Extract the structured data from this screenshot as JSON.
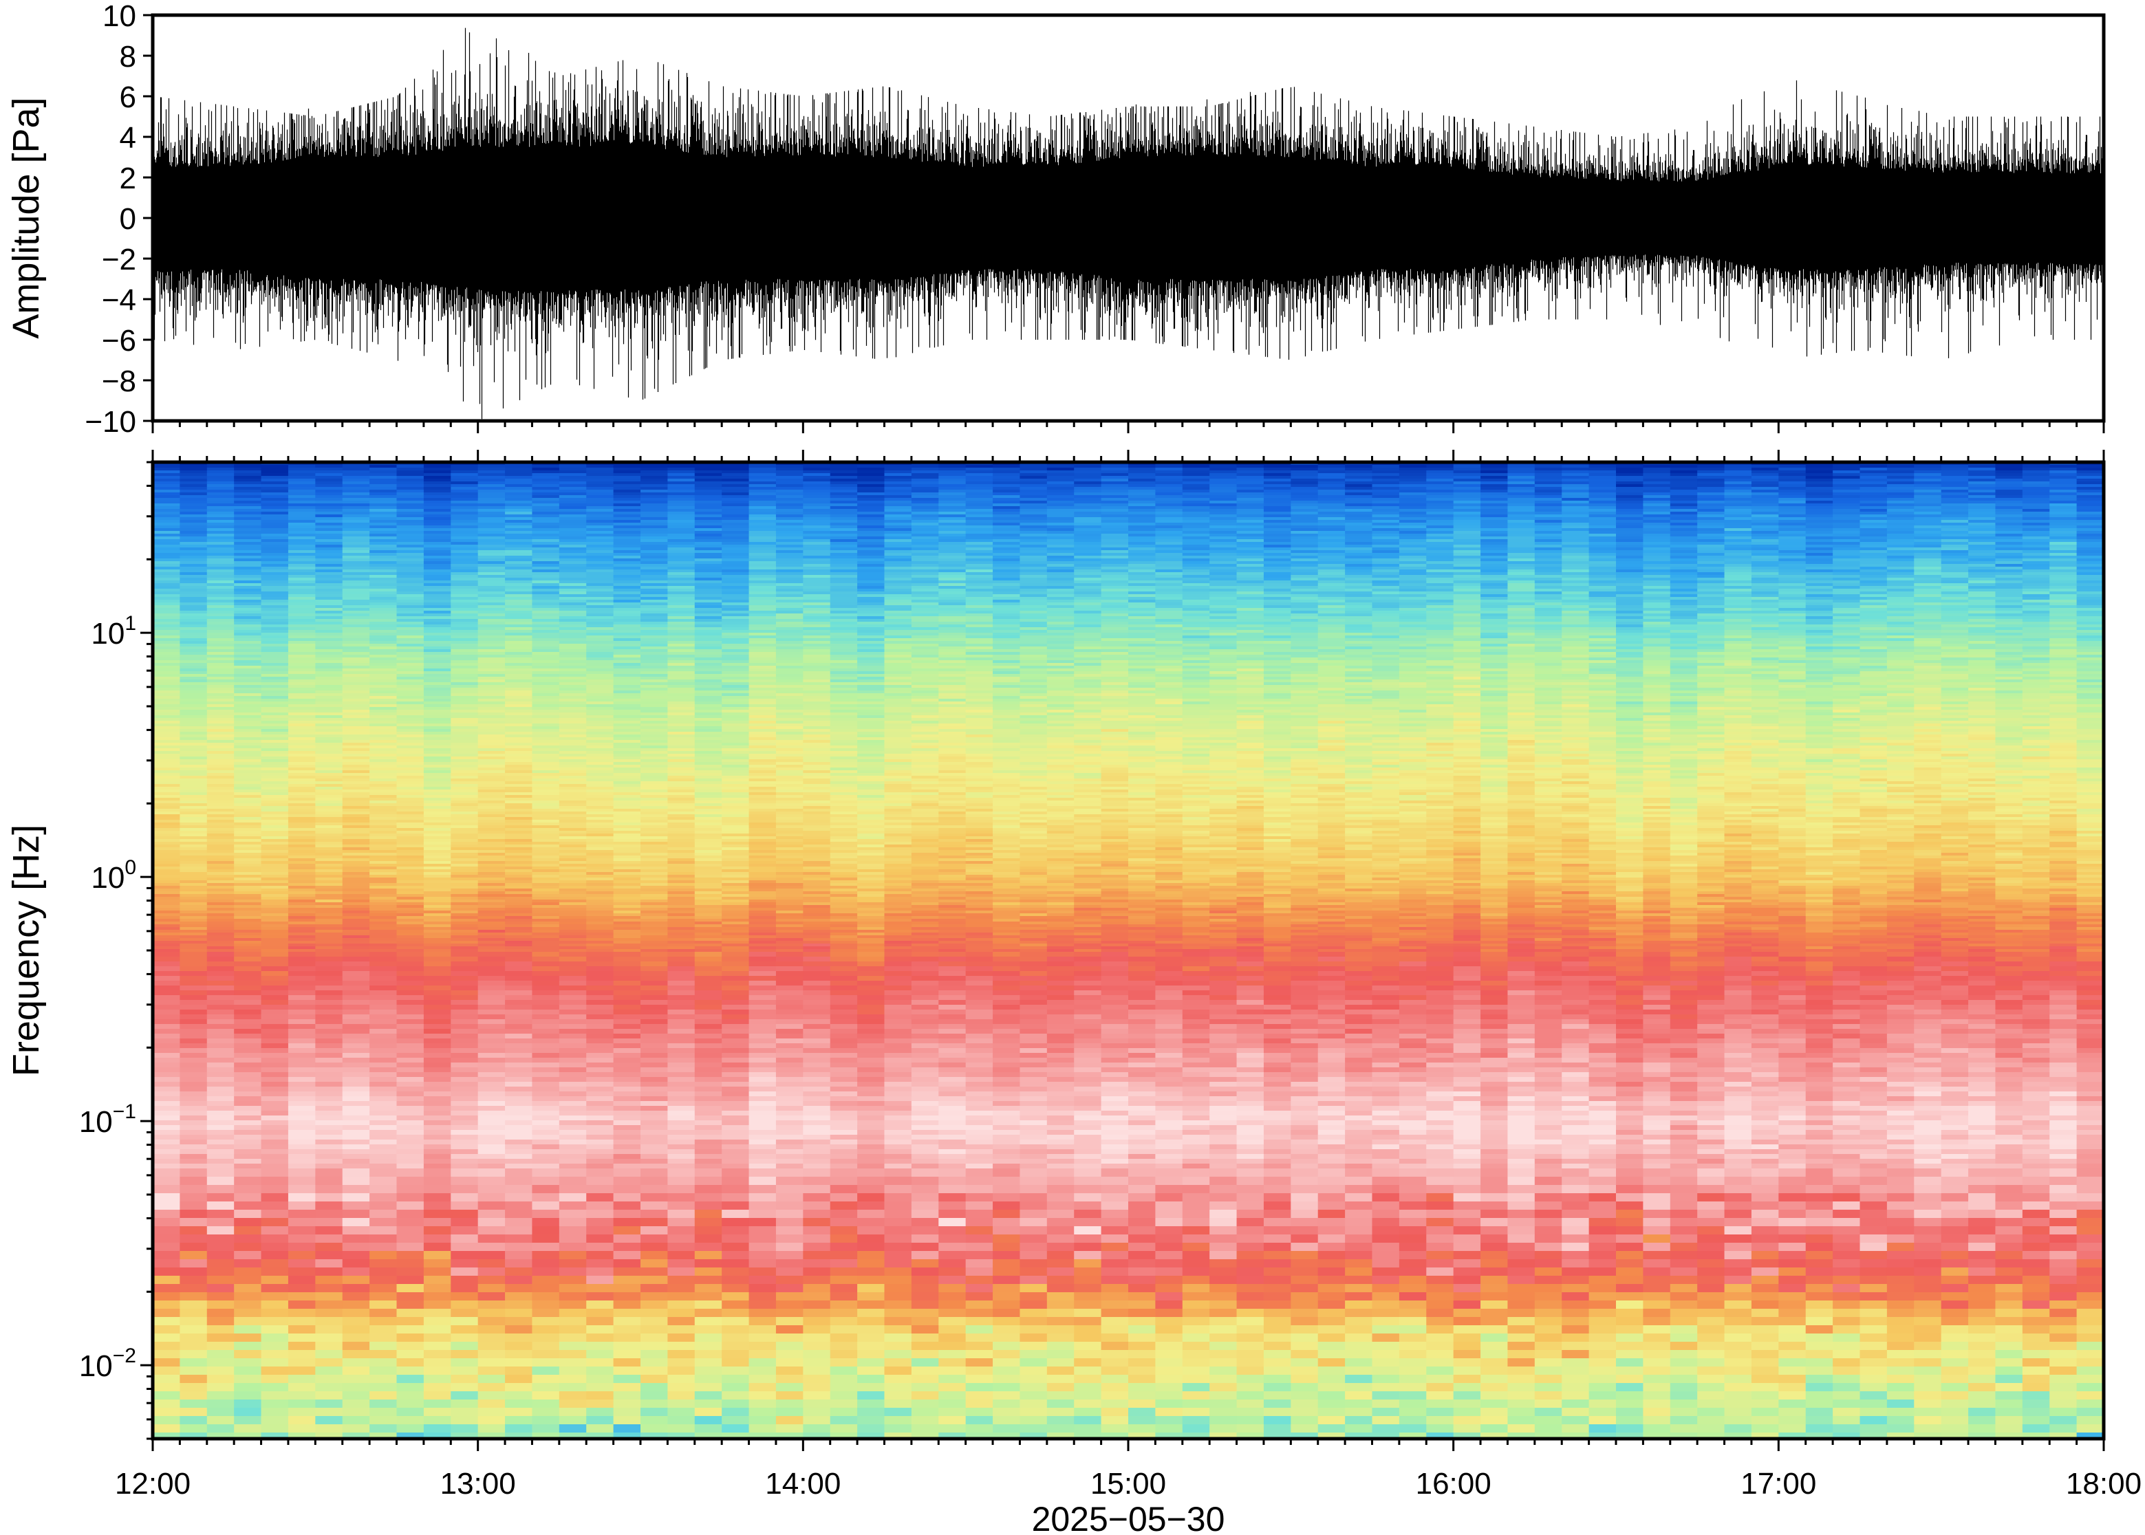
{
  "chart_data": [
    {
      "type": "line",
      "panel": "waveform",
      "ylabel": "Amplitude [Pa]",
      "ylim": [
        -10,
        10
      ],
      "yticks": [
        "10",
        "8",
        "6",
        "4",
        "2",
        "0",
        "−2",
        "−4",
        "−6",
        "−8",
        "−10"
      ],
      "ytick_values": [
        10,
        8,
        6,
        4,
        2,
        0,
        -2,
        -4,
        -6,
        -8,
        -10
      ],
      "xlim": [
        "12:00",
        "18:00"
      ],
      "series": [
        {
          "color": "#000000",
          "envelope_x": [
            "12:00",
            "12:15",
            "12:30",
            "12:45",
            "13:00",
            "13:15",
            "13:30",
            "13:45",
            "14:00",
            "14:15",
            "14:30",
            "14:45",
            "15:00",
            "15:15",
            "15:30",
            "15:45",
            "16:00",
            "16:15",
            "16:30",
            "16:45",
            "17:00",
            "17:15",
            "17:30",
            "17:45",
            "18:00"
          ],
          "envelope_max": [
            6,
            5.5,
            5,
            6,
            10,
            7,
            8,
            6.5,
            6,
            6.5,
            5.5,
            5,
            5.5,
            5.5,
            6.5,
            5.5,
            5,
            4.5,
            4,
            4.5,
            7,
            6,
            5,
            5,
            5
          ],
          "envelope_min": [
            -6,
            -6.5,
            -6,
            -7,
            -10,
            -8,
            -9,
            -7,
            -6.5,
            -7,
            -6,
            -6,
            -6,
            -6.5,
            -7,
            -6,
            -5.5,
            -5,
            -5,
            -5.5,
            -7,
            -6.5,
            -7,
            -6,
            -6
          ],
          "core_amplitude": [
            2.5,
            2.5,
            3,
            3,
            3.5,
            3.5,
            3.5,
            3,
            3,
            3,
            2.5,
            2.5,
            3,
            3,
            3,
            2.5,
            2.5,
            2,
            1.8,
            1.8,
            2.5,
            2.5,
            2.2,
            2.2,
            2.2
          ]
        }
      ]
    },
    {
      "type": "heatmap",
      "panel": "spectrogram",
      "ylabel": "Frequency [Hz]",
      "yscale": "log",
      "ylim": [
        0.005,
        50
      ],
      "yticks": [
        {
          "value": 10,
          "base": "10",
          "exp": "1"
        },
        {
          "value": 1,
          "base": "10",
          "exp": "0"
        },
        {
          "value": 0.1,
          "base": "10",
          "exp": "−1"
        },
        {
          "value": 0.01,
          "base": "10",
          "exp": "−2"
        }
      ],
      "xlabel": "2025−05−30",
      "xlim": [
        "12:00",
        "18:00"
      ],
      "xticks": [
        "12:00",
        "13:00",
        "14:00",
        "15:00",
        "16:00",
        "17:00",
        "18:00"
      ],
      "colormap": [
        "#002aa8",
        "#1565e0",
        "#2fa6ef",
        "#6ee0d8",
        "#b8f2a0",
        "#f2ef8a",
        "#f6c860",
        "#f48a4c",
        "#ef5b5b",
        "#f59a9a",
        "#fde0e0"
      ],
      "profile": {
        "freq_hz": [
          0.005,
          0.007,
          0.01,
          0.014,
          0.02,
          0.03,
          0.05,
          0.08,
          0.1,
          0.15,
          0.25,
          0.4,
          0.6,
          1,
          2,
          4,
          8,
          12,
          20,
          30,
          45,
          50
        ],
        "level": [
          0.38,
          0.44,
          0.5,
          0.56,
          0.72,
          0.84,
          0.9,
          0.96,
          0.98,
          0.92,
          0.86,
          0.8,
          0.72,
          0.6,
          0.52,
          0.46,
          0.38,
          0.3,
          0.22,
          0.16,
          0.06,
          0.0
        ]
      }
    }
  ],
  "colors": {
    "frame": "#000000",
    "waveform": "#000000",
    "background": "#ffffff"
  }
}
